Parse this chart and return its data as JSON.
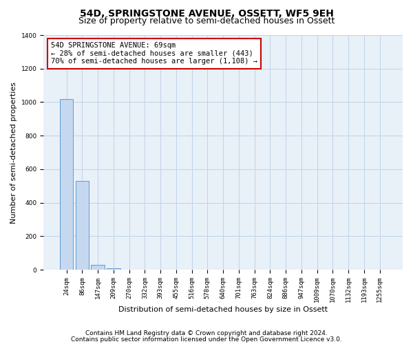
{
  "title": "54D, SPRINGSTONE AVENUE, OSSETT, WF5 9EH",
  "subtitle": "Size of property relative to semi-detached houses in Ossett",
  "xlabel": "Distribution of semi-detached houses by size in Ossett",
  "ylabel": "Number of semi-detached properties",
  "bin_labels": [
    "24sqm",
    "86sqm",
    "147sqm",
    "209sqm",
    "270sqm",
    "332sqm",
    "393sqm",
    "455sqm",
    "516sqm",
    "578sqm",
    "640sqm",
    "701sqm",
    "763sqm",
    "824sqm",
    "886sqm",
    "947sqm",
    "1009sqm",
    "1070sqm",
    "1132sqm",
    "1193sqm",
    "1255sqm"
  ],
  "bar_values": [
    1020,
    530,
    30,
    10,
    0,
    0,
    0,
    0,
    0,
    0,
    0,
    0,
    0,
    0,
    0,
    0,
    0,
    0,
    0,
    0,
    0
  ],
  "bar_color": "#c5d8f0",
  "bar_edge_color": "#5b9bd5",
  "annotation_text_line1": "54D SPRINGSTONE AVENUE: 69sqm",
  "annotation_text_line2": "← 28% of semi-detached houses are smaller (443)",
  "annotation_text_line3": "70% of semi-detached houses are larger (1,108) →",
  "annotation_box_color": "#cc0000",
  "ylim": [
    0,
    1400
  ],
  "yticks": [
    0,
    200,
    400,
    600,
    800,
    1000,
    1200,
    1400
  ],
  "footer_line1": "Contains HM Land Registry data © Crown copyright and database right 2024.",
  "footer_line2": "Contains public sector information licensed under the Open Government Licence v3.0.",
  "background_color": "#ffffff",
  "plot_bg_color": "#e8f0f8",
  "grid_color": "#c0d4e8",
  "title_fontsize": 10,
  "subtitle_fontsize": 9,
  "axis_label_fontsize": 8,
  "tick_fontsize": 6.5,
  "annotation_fontsize": 7.5,
  "footer_fontsize": 6.5
}
